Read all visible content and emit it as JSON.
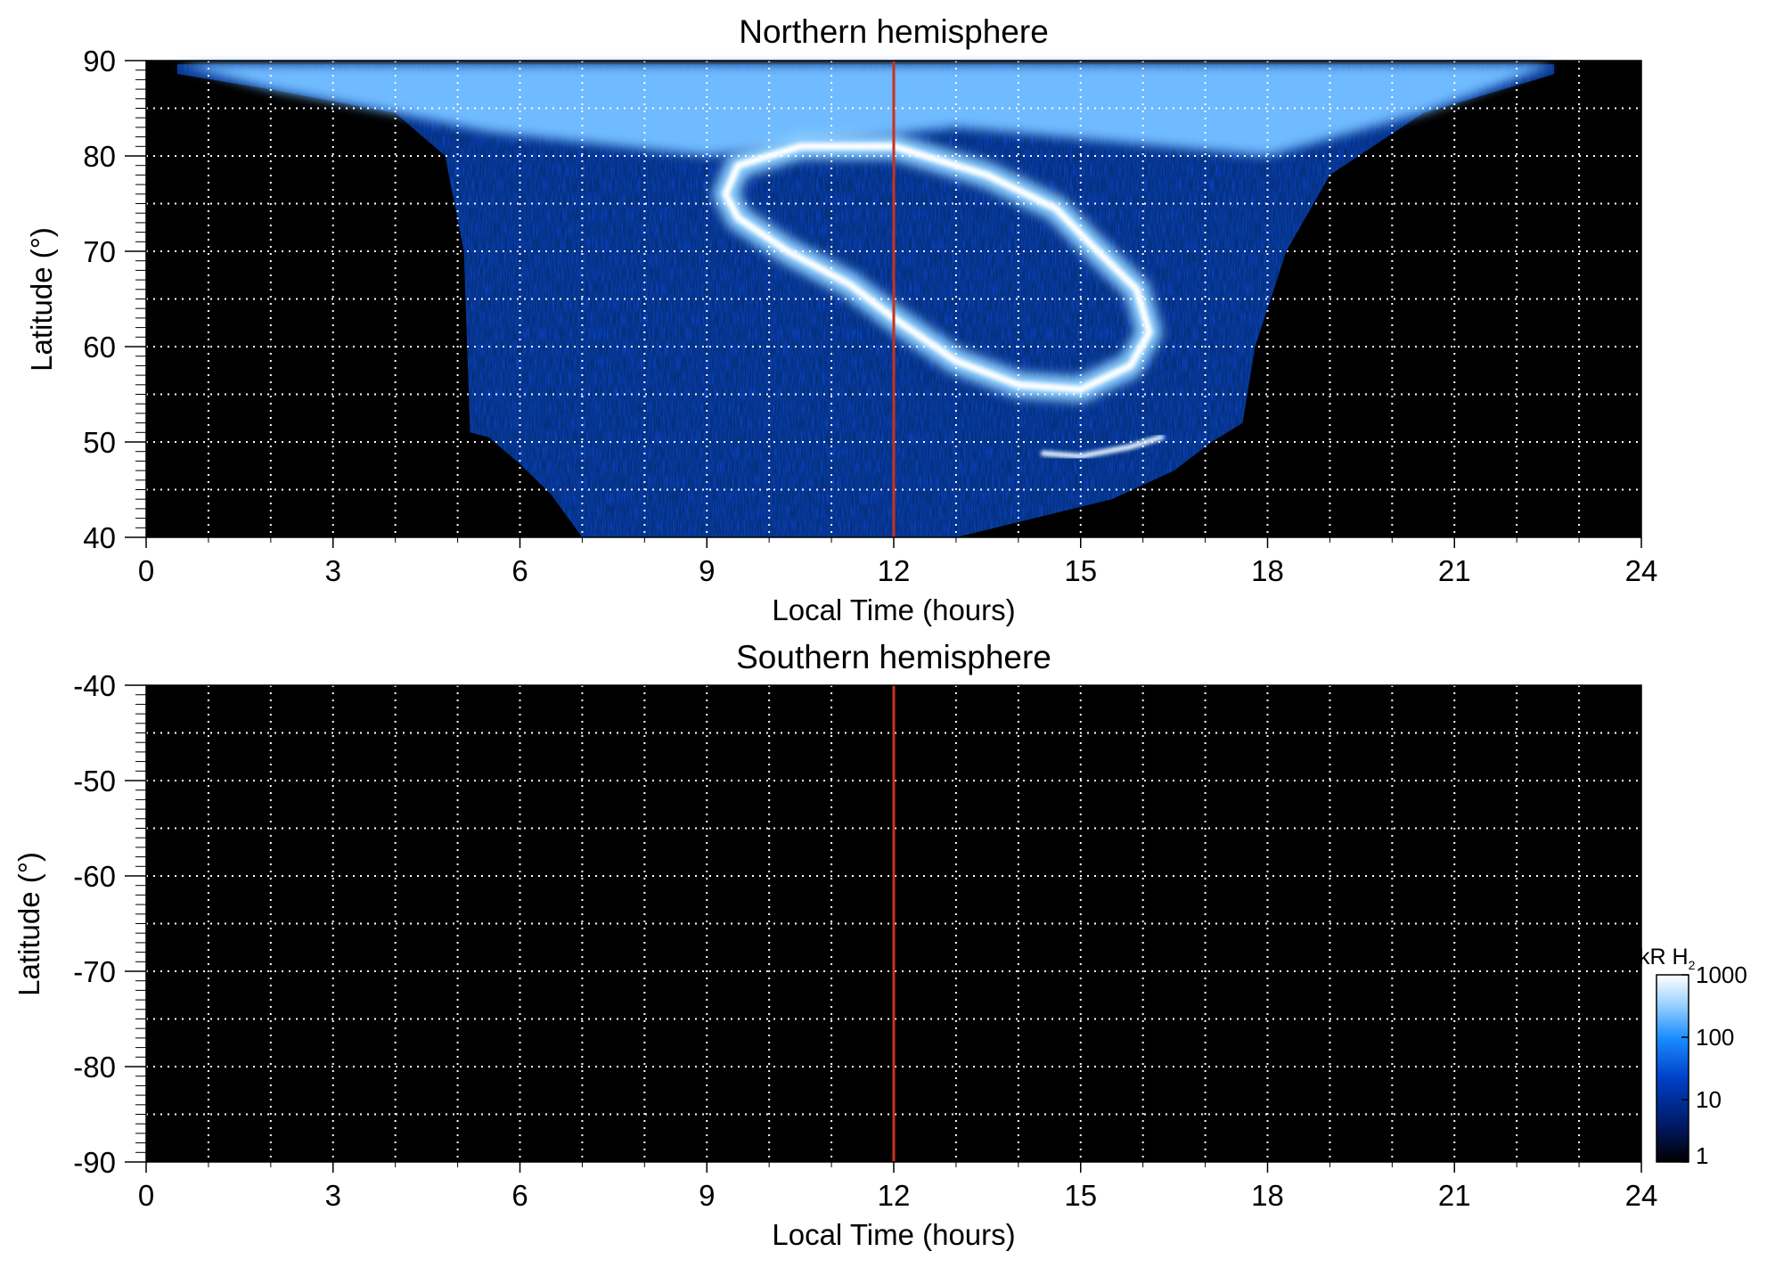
{
  "chart_data": [
    {
      "type": "heatmap",
      "title": "Northern hemisphere",
      "xlabel": "Local Time (hours)",
      "ylabel": "Latitude (°)",
      "xlim": [
        0,
        24
      ],
      "ylim": [
        40,
        90
      ],
      "x_ticks": [
        0,
        3,
        6,
        9,
        12,
        15,
        18,
        21,
        24
      ],
      "y_ticks": [
        40,
        50,
        60,
        70,
        80,
        90
      ],
      "x_tick_labels": [
        "0",
        "3",
        "6",
        "9",
        "12",
        "15",
        "18",
        "21",
        "24"
      ],
      "y_tick_labels": [
        "40",
        "50",
        "60",
        "70",
        "80",
        "90"
      ],
      "grid": true,
      "reference_line": {
        "x": 12,
        "color": "#c8321e"
      },
      "features": {
        "observed_region_lower_edge": [
          [
            0.5,
            88.6
          ],
          [
            2,
            87
          ],
          [
            4,
            84.5
          ],
          [
            4.8,
            80
          ],
          [
            5.1,
            70
          ],
          [
            5.2,
            51
          ],
          [
            5.5,
            50.5
          ],
          [
            6,
            47.7
          ],
          [
            6.5,
            44.5
          ],
          [
            7,
            40
          ],
          [
            13,
            40
          ],
          [
            15.5,
            44
          ],
          [
            16.5,
            47
          ],
          [
            17.1,
            50
          ],
          [
            17.6,
            52
          ],
          [
            17.8,
            60
          ],
          [
            18.3,
            70
          ],
          [
            19,
            78
          ],
          [
            20.5,
            84.5
          ],
          [
            22,
            87.4
          ],
          [
            22.6,
            88.6
          ]
        ],
        "main_auroral_oval": [
          [
            9.3,
            76
          ],
          [
            9.5,
            73.5
          ],
          [
            10.3,
            70
          ],
          [
            11.3,
            66.5
          ],
          [
            12,
            63
          ],
          [
            13,
            58.5
          ],
          [
            14,
            56
          ],
          [
            15,
            55.5
          ],
          [
            15.8,
            58
          ],
          [
            16.1,
            61.5
          ],
          [
            15.9,
            66
          ],
          [
            15.2,
            70.5
          ],
          [
            14.6,
            74.5
          ],
          [
            13.5,
            78
          ],
          [
            12,
            81
          ],
          [
            10.5,
            81
          ],
          [
            9.5,
            79
          ]
        ],
        "secondary_arc": [
          [
            14.4,
            48.8
          ],
          [
            15,
            48.5
          ],
          [
            15.8,
            49.5
          ],
          [
            16.3,
            50.5
          ]
        ]
      },
      "peak_brightness_kR": 1000,
      "units": "kR H2"
    },
    {
      "type": "heatmap",
      "title": "Southern hemisphere",
      "xlabel": "Local Time (hours)",
      "ylabel": "Latitude (°)",
      "xlim": [
        0,
        24
      ],
      "ylim": [
        -90,
        -40
      ],
      "x_ticks": [
        0,
        3,
        6,
        9,
        12,
        15,
        18,
        21,
        24
      ],
      "y_ticks": [
        -40,
        -50,
        -60,
        -70,
        -80,
        -90
      ],
      "x_tick_labels": [
        "0",
        "3",
        "6",
        "9",
        "12",
        "15",
        "18",
        "21",
        "24"
      ],
      "y_tick_labels": [
        "-40",
        "-50",
        "-60",
        "-70",
        "-80",
        "-90"
      ],
      "grid": true,
      "reference_line": {
        "x": 12,
        "color": "#c8321e"
      },
      "note_values": "no emission (all black)"
    }
  ],
  "colorbar": {
    "label_main": "kR H",
    "label_sub": "2",
    "scale": "log",
    "range": [
      1,
      1000
    ],
    "ticks": [
      1,
      10,
      100,
      1000
    ],
    "tick_labels": [
      "1",
      "10",
      "100",
      "1000"
    ],
    "colors": [
      "#000000",
      "#001a66",
      "#0040c8",
      "#1a8cff",
      "#9fd4ff",
      "#ffffff"
    ]
  }
}
